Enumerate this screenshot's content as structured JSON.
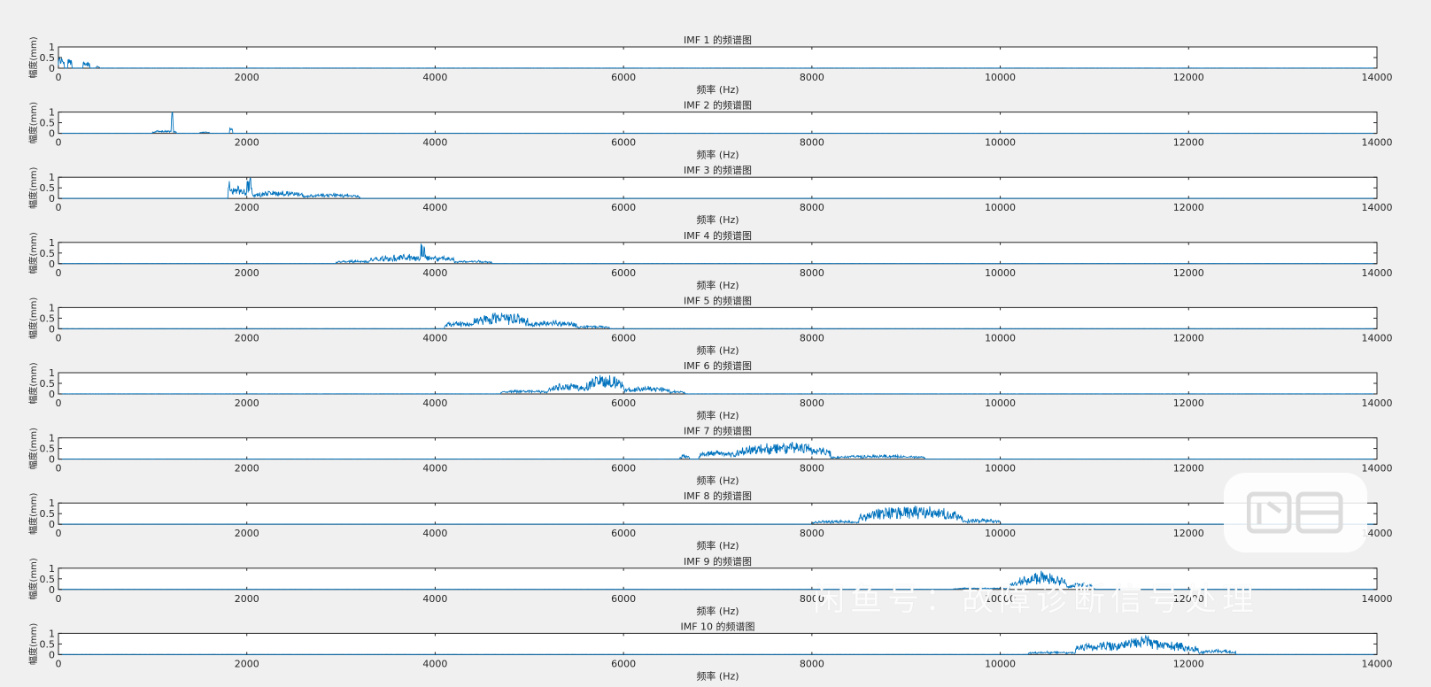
{
  "watermark": {
    "text": "闲鱼号：故障诊断信号处理"
  },
  "colors": {
    "series": "#0072bd",
    "background": "#f0f0f0",
    "axes_bg": "#ffffff",
    "axis_line": "#262626"
  },
  "chart_data": [
    {
      "type": "line",
      "title": "IMF 1 的频谱图",
      "xlabel": "频率 (Hz)",
      "ylabel": "幅度(mm)",
      "xlim": [
        0,
        14000
      ],
      "ylim": [
        0,
        1
      ],
      "xticks": [
        "0",
        "2000",
        "4000",
        "6000",
        "8000",
        "10000",
        "12000",
        "14000"
      ],
      "yticks": [
        "0",
        "0.5",
        "1"
      ],
      "series": [
        {
          "bands": [
            [
              0,
              60,
              0.5,
              0.05
            ],
            [
              100,
              140,
              0.5,
              0.1
            ],
            [
              260,
              330,
              0.22,
              0.1
            ],
            [
              400,
              440,
              0.1,
              0.03
            ]
          ]
        }
      ]
    },
    {
      "type": "line",
      "title": "IMF 2 的频谱图",
      "xlabel": "频率 (Hz)",
      "ylabel": "幅度(mm)",
      "xlim": [
        0,
        14000
      ],
      "ylim": [
        0,
        1
      ],
      "xticks": [
        "0",
        "2000",
        "4000",
        "6000",
        "8000",
        "10000",
        "12000",
        "14000"
      ],
      "yticks": [
        "0",
        "0.5",
        "1"
      ],
      "series": [
        {
          "bands": [
            [
              1000,
              1250,
              0.1,
              0.06
            ],
            [
              1200,
              1220,
              0.98,
              0.1
            ],
            [
              1500,
              1600,
              0.06,
              0.03
            ],
            [
              1820,
              1850,
              0.25,
              0.08
            ]
          ]
        }
      ]
    },
    {
      "type": "line",
      "title": "IMF 3 的频谱图",
      "xlabel": "频率 (Hz)",
      "ylabel": "幅度(mm)",
      "xlim": [
        0,
        14000
      ],
      "ylim": [
        0,
        1
      ],
      "xticks": [
        "0",
        "2000",
        "4000",
        "6000",
        "8000",
        "10000",
        "12000",
        "14000"
      ],
      "yticks": [
        "0",
        "0.5",
        "1"
      ],
      "series": [
        {
          "bands": [
            [
              1800,
              2000,
              0.45,
              0.15
            ],
            [
              1800,
              1830,
              0.75,
              0.1
            ],
            [
              2000,
              2060,
              0.95,
              0.1
            ],
            [
              2060,
              2600,
              0.3,
              0.1
            ],
            [
              2600,
              3200,
              0.18,
              0.08
            ]
          ]
        }
      ]
    },
    {
      "type": "line",
      "title": "IMF 4 的频谱图",
      "xlabel": "频率 (Hz)",
      "ylabel": "幅度(mm)",
      "xlim": [
        0,
        14000
      ],
      "ylim": [
        0,
        1
      ],
      "xticks": [
        "0",
        "2000",
        "4000",
        "6000",
        "8000",
        "10000",
        "12000",
        "14000"
      ],
      "yticks": [
        "0",
        "0.5",
        "1"
      ],
      "series": [
        {
          "bands": [
            [
              2950,
              3300,
              0.12,
              0.06
            ],
            [
              3300,
              4200,
              0.35,
              0.12
            ],
            [
              3850,
              3890,
              0.98,
              0.1
            ],
            [
              4200,
              4600,
              0.12,
              0.05
            ]
          ]
        }
      ]
    },
    {
      "type": "line",
      "title": "IMF 5 的频谱图",
      "xlabel": "频率 (Hz)",
      "ylabel": "幅度(mm)",
      "xlim": [
        0,
        14000
      ],
      "ylim": [
        0,
        1
      ],
      "xticks": [
        "0",
        "2000",
        "4000",
        "6000",
        "8000",
        "10000",
        "12000",
        "14000"
      ],
      "yticks": [
        "0",
        "0.5",
        "1"
      ],
      "series": [
        {
          "bands": [
            [
              4100,
              4400,
              0.3,
              0.1
            ],
            [
              4400,
              5000,
              0.72,
              0.15
            ],
            [
              5000,
              5500,
              0.35,
              0.1
            ],
            [
              5500,
              5850,
              0.12,
              0.05
            ]
          ]
        }
      ]
    },
    {
      "type": "line",
      "title": "IMF 6 的频谱图",
      "xlabel": "频率 (Hz)",
      "ylabel": "幅度(mm)",
      "xlim": [
        0,
        14000
      ],
      "ylim": [
        0,
        1
      ],
      "xticks": [
        "0",
        "2000",
        "4000",
        "6000",
        "8000",
        "10000",
        "12000",
        "14000"
      ],
      "yticks": [
        "0",
        "0.5",
        "1"
      ],
      "series": [
        {
          "bands": [
            [
              4700,
              5200,
              0.15,
              0.06
            ],
            [
              5200,
              5600,
              0.45,
              0.12
            ],
            [
              5600,
              6000,
              0.85,
              0.15
            ],
            [
              6000,
              6500,
              0.3,
              0.1
            ],
            [
              6500,
              6650,
              0.12,
              0.05
            ]
          ]
        }
      ]
    },
    {
      "type": "line",
      "title": "IMF 7 的频谱图",
      "xlabel": "频率 (Hz)",
      "ylabel": "幅度(mm)",
      "xlim": [
        0,
        14000
      ],
      "ylim": [
        0,
        1
      ],
      "xticks": [
        "0",
        "2000",
        "4000",
        "6000",
        "8000",
        "10000",
        "12000",
        "14000"
      ],
      "yticks": [
        "0",
        "0.5",
        "1"
      ],
      "series": [
        {
          "bands": [
            [
              6600,
              6700,
              0.2,
              0.06
            ],
            [
              6800,
              7200,
              0.35,
              0.1
            ],
            [
              7200,
              8200,
              0.7,
              0.15
            ],
            [
              8200,
              9200,
              0.15,
              0.06
            ]
          ]
        }
      ]
    },
    {
      "type": "line",
      "title": "IMF 8 的频谱图",
      "xlabel": "频率 (Hz)",
      "ylabel": "幅度(mm)",
      "xlim": [
        0,
        14000
      ],
      "ylim": [
        0,
        1
      ],
      "xticks": [
        "0",
        "2000",
        "4000",
        "6000",
        "8000",
        "10000",
        "12000",
        "14000"
      ],
      "yticks": [
        "0",
        "0.5",
        "1"
      ],
      "series": [
        {
          "bands": [
            [
              8000,
              8500,
              0.15,
              0.06
            ],
            [
              8500,
              9600,
              0.78,
              0.15
            ],
            [
              9600,
              10000,
              0.2,
              0.08
            ]
          ]
        }
      ]
    },
    {
      "type": "line",
      "title": "IMF 9 的频谱图",
      "xlabel": "频率 (Hz)",
      "ylabel": "幅度(mm)",
      "xlim": [
        0,
        14000
      ],
      "ylim": [
        0,
        1
      ],
      "xticks": [
        "0",
        "2000",
        "4000",
        "6000",
        "8000",
        "10000",
        "12000",
        "14000"
      ],
      "yticks": [
        "0",
        "0.5",
        "1"
      ],
      "series": [
        {
          "bands": [
            [
              9500,
              10100,
              0.06,
              0.03
            ],
            [
              10100,
              10500,
              0.4,
              0.1
            ],
            [
              10200,
              10700,
              0.78,
              0.15
            ],
            [
              10700,
              11000,
              0.25,
              0.08
            ]
          ]
        }
      ]
    },
    {
      "type": "line",
      "title": "IMF 10 的频谱图",
      "xlabel": "频率 (Hz)",
      "ylabel": "幅度(mm)",
      "xlim": [
        0,
        14000
      ],
      "ylim": [
        0,
        1
      ],
      "xticks": [
        "0",
        "2000",
        "4000",
        "6000",
        "8000",
        "10000",
        "12000",
        "14000"
      ],
      "yticks": [
        "0",
        "0.5",
        "1"
      ],
      "series": [
        {
          "bands": [
            [
              10300,
              10800,
              0.12,
              0.05
            ],
            [
              10800,
              12100,
              0.65,
              0.12
            ],
            [
              11300,
              11700,
              0.85,
              0.1
            ],
            [
              12100,
              12500,
              0.2,
              0.06
            ]
          ]
        }
      ]
    }
  ]
}
